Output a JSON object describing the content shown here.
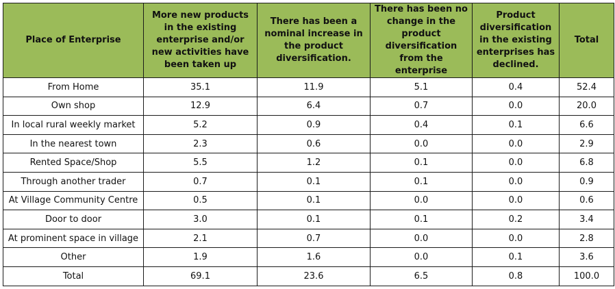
{
  "table": {
    "headers": [
      "Place of Enterprise",
      "More new products in the existing enterprise and/or new activities have been taken up",
      "There has been a nominal increase in the product diversification.",
      "There has been no change in the product diversification from the enterprise",
      "Product diversification in the existing enterprises has declined.",
      "Total"
    ],
    "rows": [
      [
        "From Home",
        "35.1",
        "11.9",
        "5.1",
        "0.4",
        "52.4"
      ],
      [
        "Own shop",
        "12.9",
        "6.4",
        "0.7",
        "0.0",
        "20.0"
      ],
      [
        "In local rural weekly market",
        "5.2",
        "0.9",
        "0.4",
        "0.1",
        "6.6"
      ],
      [
        "In the nearest town",
        "2.3",
        "0.6",
        "0.0",
        "0.0",
        "2.9"
      ],
      [
        "Rented Space/Shop",
        "5.5",
        "1.2",
        "0.1",
        "0.0",
        "6.8"
      ],
      [
        "Through another trader",
        "0.7",
        "0.1",
        "0.1",
        "0.0",
        "0.9"
      ],
      [
        "At Village Community Centre",
        "0.5",
        "0.1",
        "0.0",
        "0.0",
        "0.6"
      ],
      [
        "Door to door",
        "3.0",
        "0.1",
        "0.1",
        "0.2",
        "3.4"
      ],
      [
        "At prominent space in village",
        "2.1",
        "0.7",
        "0.0",
        "0.0",
        "2.8"
      ],
      [
        "Other",
        "1.9",
        "1.6",
        "0.0",
        "0.1",
        "3.6"
      ],
      [
        "Total",
        "69.1",
        "23.6",
        "6.5",
        "0.8",
        "100.0"
      ]
    ]
  },
  "colors": {
    "header_background": "#9bbb59",
    "border": "#1a1a1a"
  }
}
